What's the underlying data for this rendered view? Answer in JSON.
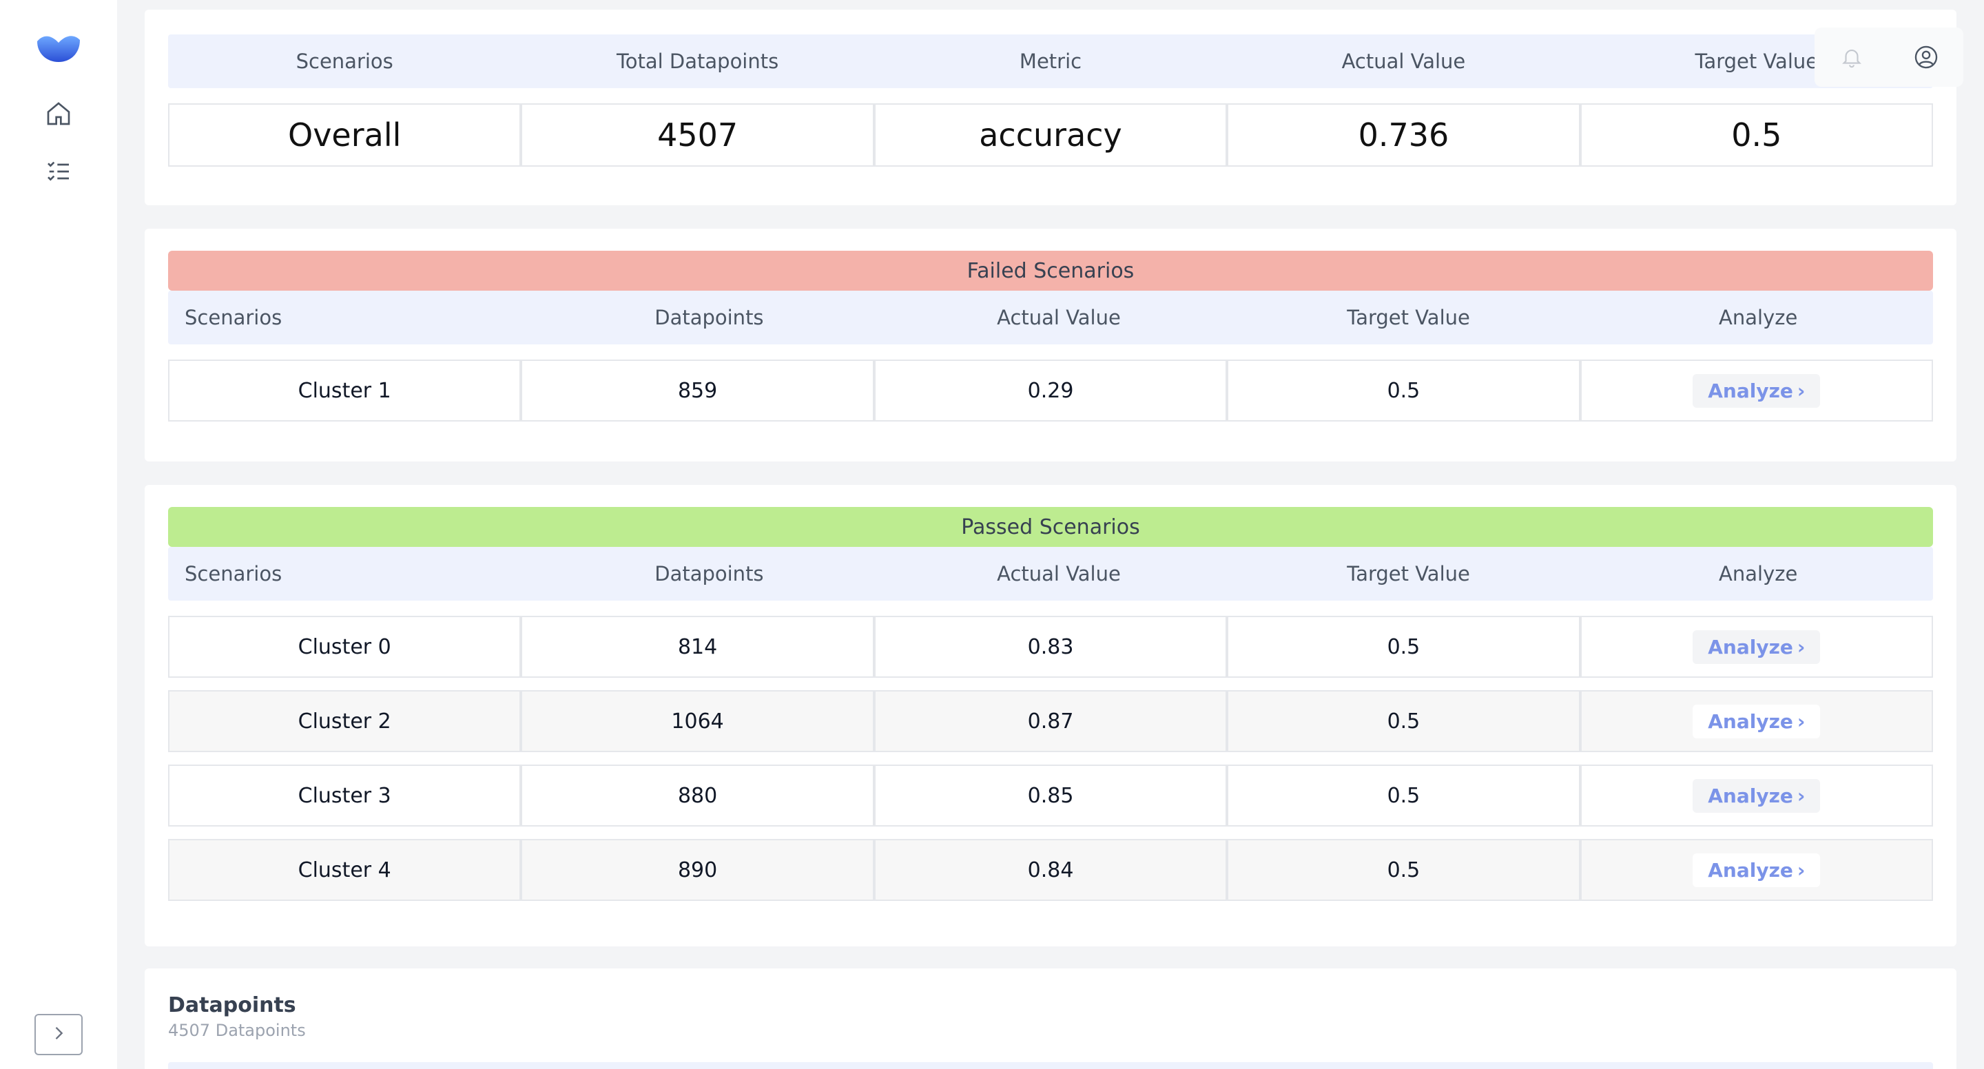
{
  "sidebar": {
    "icons": [
      "logo-icon",
      "home-icon",
      "checklist-icon"
    ],
    "expand_icon": "chevron-right-icon"
  },
  "header_actions": [
    "bell-icon",
    "user-circle-icon"
  ],
  "summary": {
    "headers": [
      "Scenarios",
      "Total Datapoints",
      "Metric",
      "Actual Value",
      "Target Value"
    ],
    "values": [
      "Overall",
      "4507",
      "accuracy",
      "0.736",
      "0.5"
    ]
  },
  "failed": {
    "title": "Failed Scenarios",
    "headers": [
      "Scenarios",
      "Datapoints",
      "Actual Value",
      "Target Value",
      "Analyze"
    ],
    "rows": [
      {
        "name": "Cluster 1",
        "datapoints": "859",
        "actual": "0.29",
        "target": "0.5",
        "action": "Analyze"
      }
    ]
  },
  "passed": {
    "title": "Passed Scenarios",
    "headers": [
      "Scenarios",
      "Datapoints",
      "Actual Value",
      "Target Value",
      "Analyze"
    ],
    "rows": [
      {
        "name": "Cluster 0",
        "datapoints": "814",
        "actual": "0.83",
        "target": "0.5",
        "action": "Analyze"
      },
      {
        "name": "Cluster 2",
        "datapoints": "1064",
        "actual": "0.87",
        "target": "0.5",
        "action": "Analyze"
      },
      {
        "name": "Cluster 3",
        "datapoints": "880",
        "actual": "0.85",
        "target": "0.5",
        "action": "Analyze"
      },
      {
        "name": "Cluster 4",
        "datapoints": "890",
        "actual": "0.84",
        "target": "0.5",
        "action": "Analyze"
      }
    ]
  },
  "datapoints_section": {
    "title": "Datapoints",
    "subtitle": "4507 Datapoints"
  },
  "colors": {
    "failed_banner": "#f4b2aa",
    "passed_banner": "#bdec90",
    "header_bg": "#eef2fd",
    "analyze_text": "#7b93e8",
    "brand": "#3b5bdb"
  }
}
